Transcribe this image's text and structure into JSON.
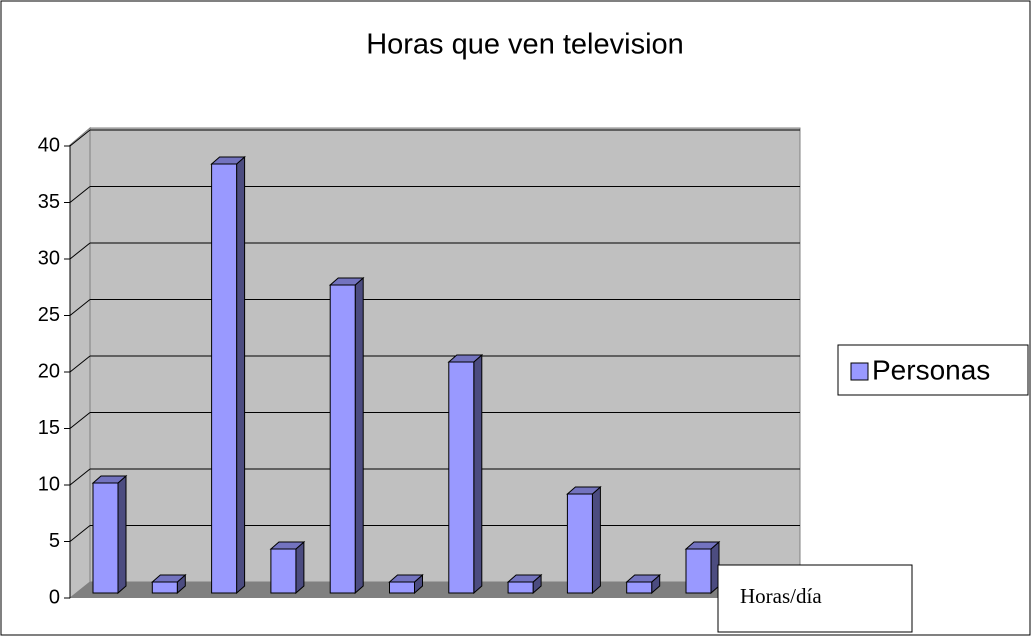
{
  "chart_data": {
    "type": "bar",
    "title": "Horas que ven television",
    "values": [
      10,
      1,
      39,
      4,
      28,
      1,
      21,
      1,
      9,
      1,
      4
    ],
    "series_name": "Personas",
    "color": "#9999ff",
    "ylim": [
      0,
      40
    ],
    "yticks": [
      0,
      5,
      10,
      15,
      20,
      25,
      30,
      35,
      40
    ],
    "grid": true,
    "annotation": "Horas/día"
  }
}
